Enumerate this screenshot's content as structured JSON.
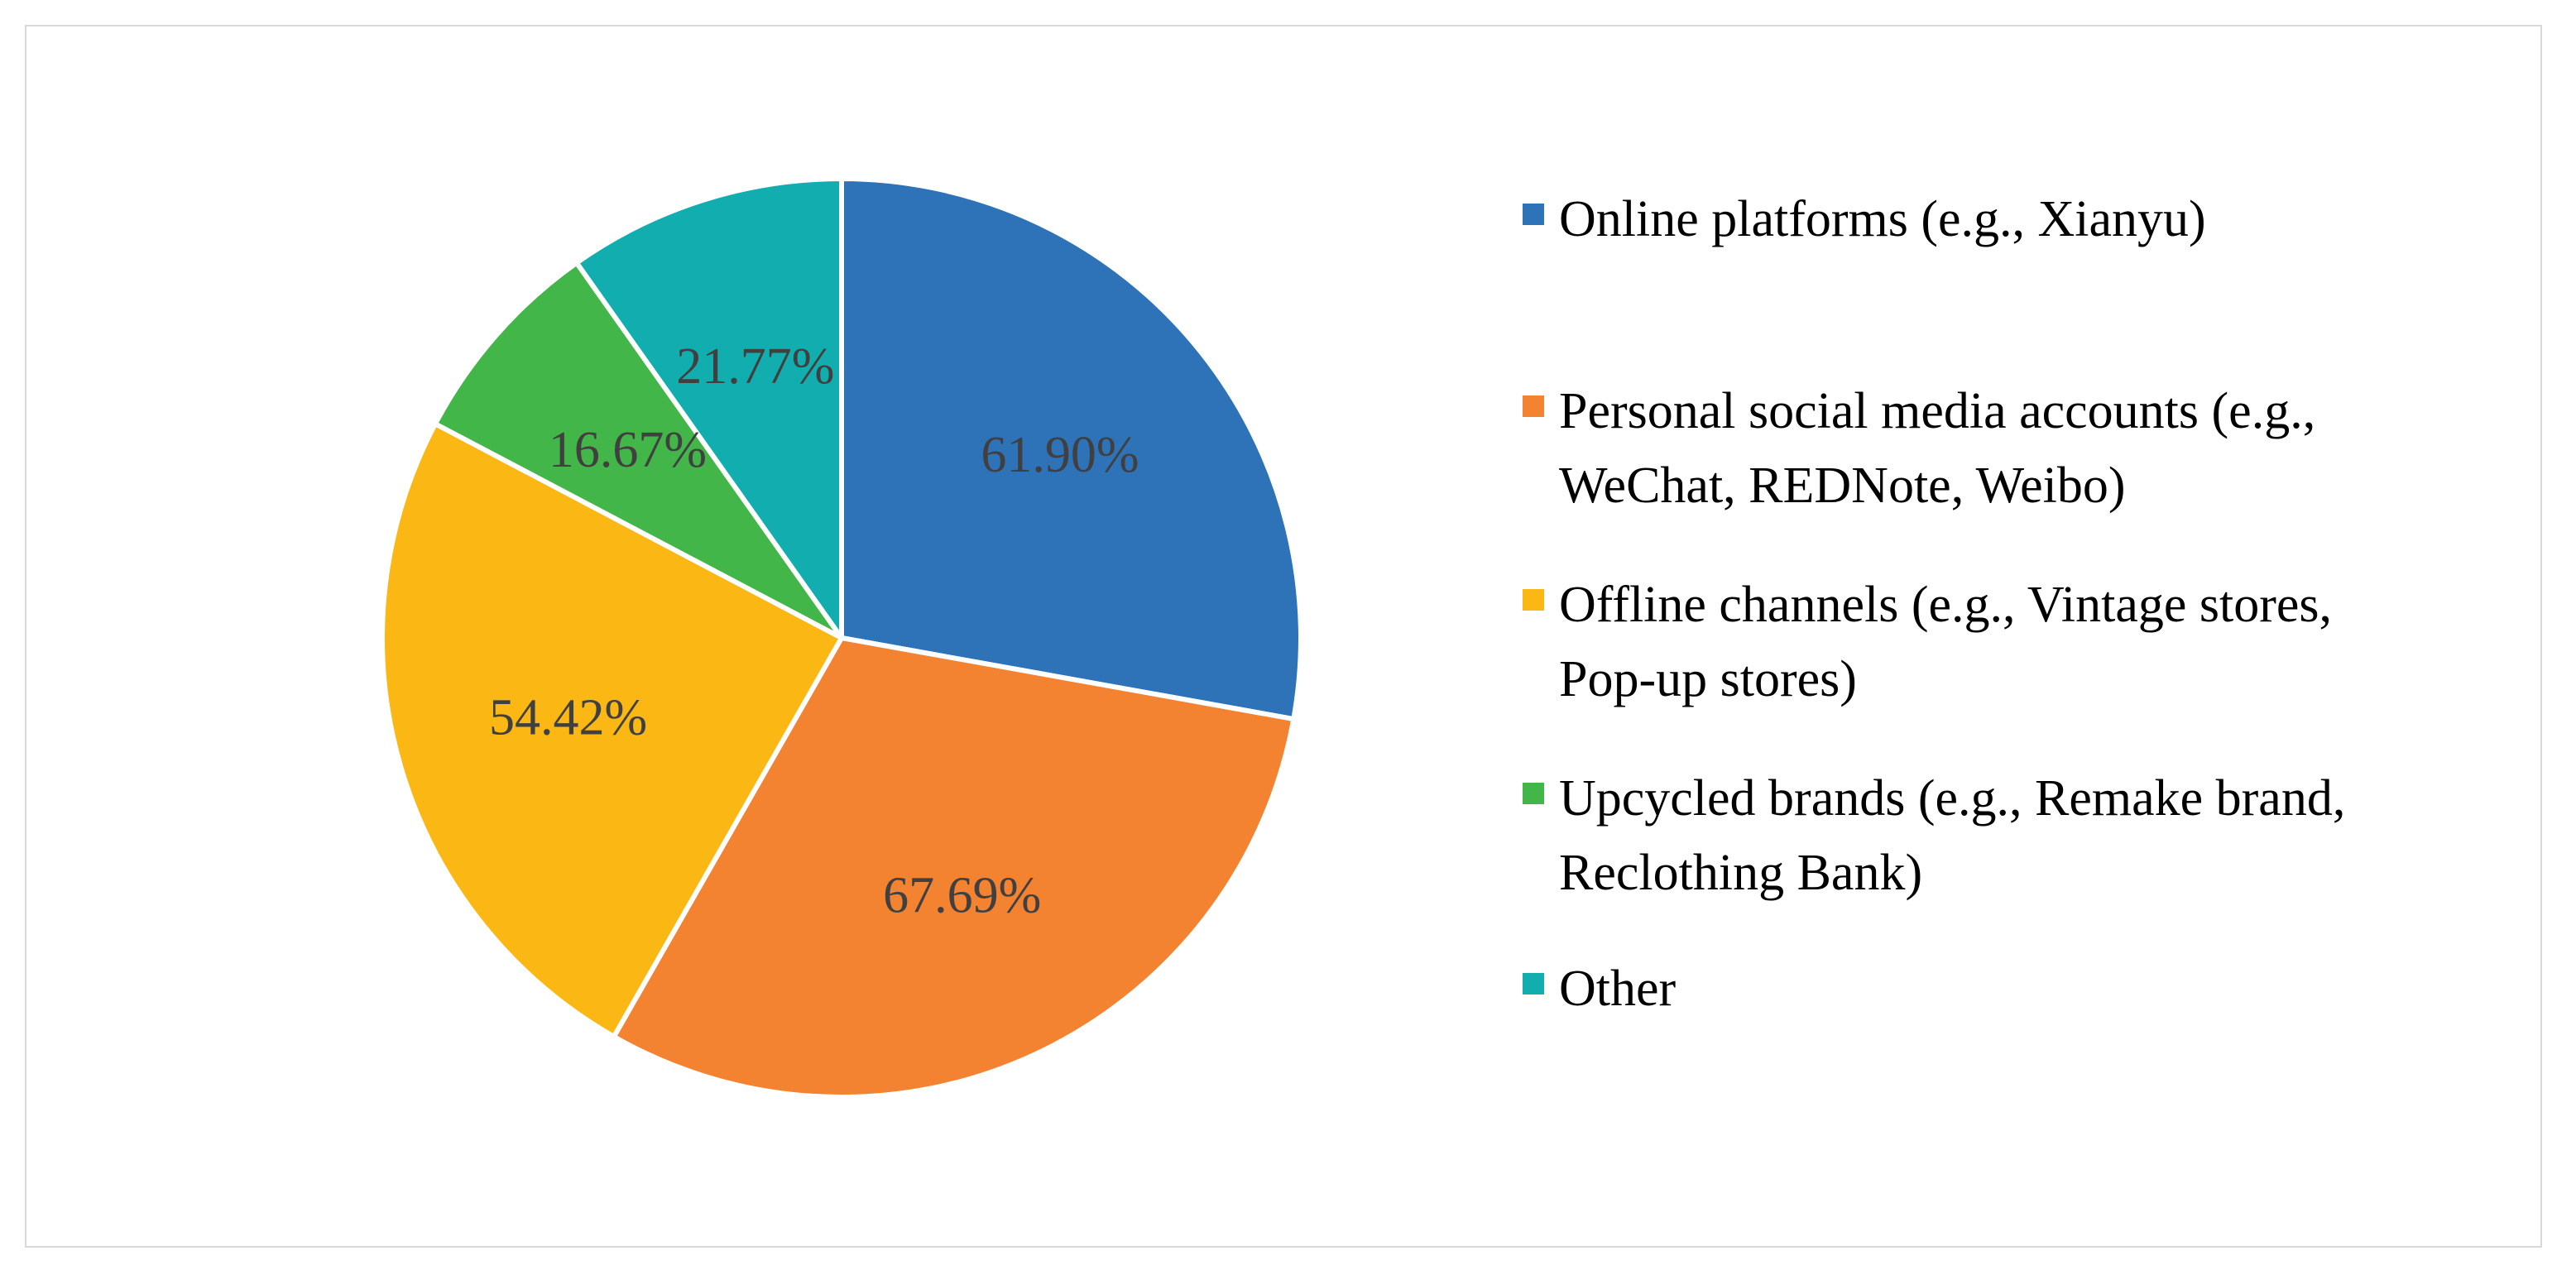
{
  "chart_data": {
    "type": "pie",
    "title": "",
    "slices": [
      {
        "label": "Online platforms (e.g., Xianyu)",
        "display_label": "61.90%",
        "value": 61.9,
        "color": "#2e72b8"
      },
      {
        "label": "Personal social media accounts (e.g., WeChat, REDNote, Weibo)",
        "display_label": "67.69%",
        "value": 67.69,
        "color": "#f38231"
      },
      {
        "label": "Offline channels (e.g., Vintage stores, Pop-up stores)",
        "display_label": "54.42%",
        "value": 54.42,
        "color": "#fbb713"
      },
      {
        "label": "Upcycled brands (e.g., Remake brand, Reclothing Bank)",
        "display_label": "16.67%",
        "value": 16.67,
        "color": "#43b649"
      },
      {
        "label": "Other",
        "display_label": "21.77%",
        "value": 21.77,
        "color": "#12aeaf"
      }
    ],
    "legend": {
      "placement": "right",
      "entries": [
        {
          "lines": [
            "Online platforms (e.g., Xianyu)"
          ],
          "color": "#2e72b8"
        },
        {
          "lines": [
            "Personal social media accounts (e.g.,",
            "WeChat, REDNote, Weibo)"
          ],
          "color": "#f38231"
        },
        {
          "lines": [
            "Offline channels (e.g., Vintage stores,",
            "Pop-up stores)"
          ],
          "color": "#fbb713"
        },
        {
          "lines": [
            "Upcycled brands (e.g., Remake brand,",
            "Reclothing Bank)"
          ],
          "color": "#43b649"
        },
        {
          "lines": [
            "Other"
          ],
          "color": "#12aeaf"
        }
      ]
    }
  }
}
